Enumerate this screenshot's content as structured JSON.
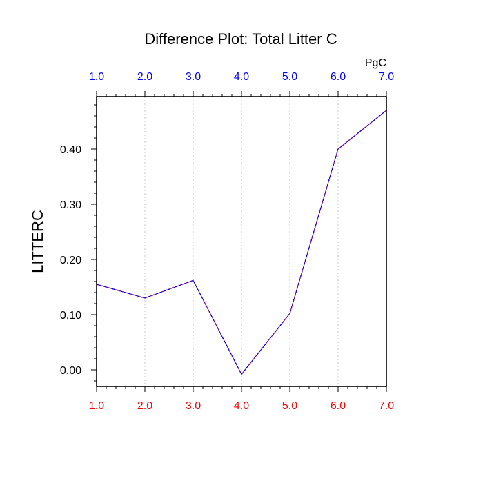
{
  "chart_data": {
    "type": "line",
    "title": "Difference Plot: Total Litter C",
    "units": "PgC",
    "ylabel": "LITTERC",
    "xlabel": "",
    "x": [
      1,
      2,
      3,
      4,
      5,
      6,
      7
    ],
    "series": [
      {
        "values": [
          0.155,
          0.13,
          0.162,
          -0.008,
          0.102,
          0.4,
          0.47
        ],
        "color": "#800080",
        "dash_color": "#0000ff",
        "style": "dashed"
      }
    ],
    "xlim": [
      1,
      7
    ],
    "ylim": [
      -0.03,
      0.495
    ],
    "xticks": [
      1,
      2,
      3,
      4,
      5,
      6,
      7
    ],
    "xtick_labels": [
      "1.0",
      "2.0",
      "3.0",
      "4.0",
      "5.0",
      "6.0",
      "7.0"
    ],
    "xminor_step": 0.2,
    "yticks": [
      0.0,
      0.1,
      0.2,
      0.3,
      0.4
    ],
    "ytick_labels": [
      "0.00",
      "0.10",
      "0.20",
      "0.30",
      "0.40"
    ],
    "yminor_step": 0.02,
    "top_axis_color": "#0000ff",
    "bottom_axis_color": "#ff0000",
    "grid": "vertical-dotted"
  }
}
